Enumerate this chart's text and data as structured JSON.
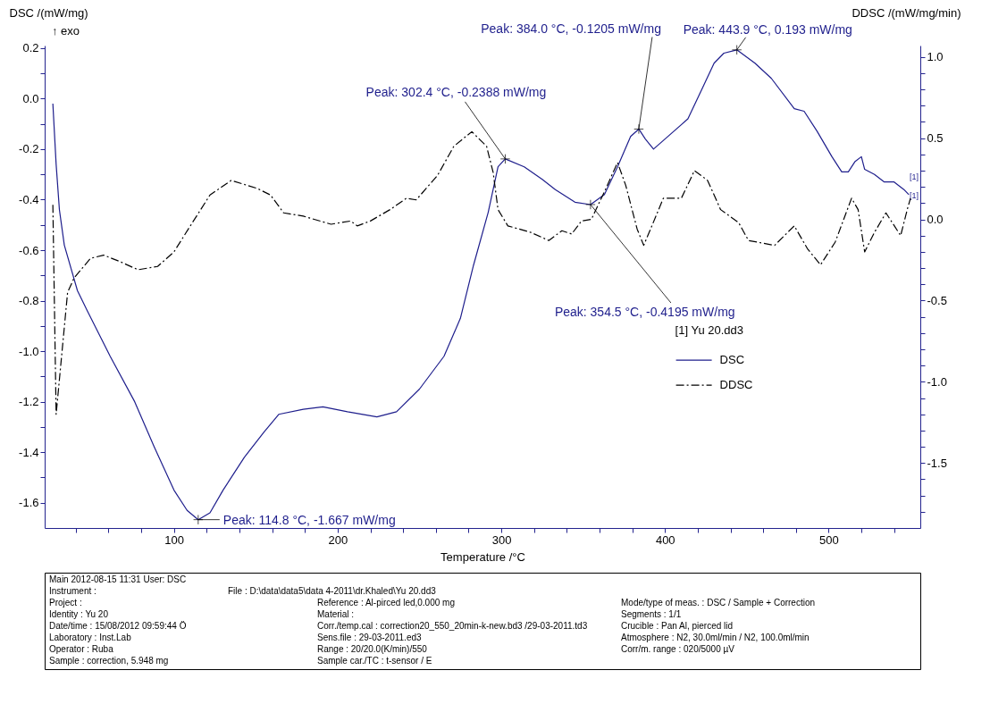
{
  "chart_data": {
    "type": "line",
    "xlabel": "Temperature /°C",
    "ylabel": "DSC /(mW/mg)",
    "y2label": "DDSC /(mW/mg/min)",
    "legend_title": "[1] Yu 20.dd3",
    "legend": "right",
    "xlim": [
      21,
      556
    ],
    "xticks": [
      {
        "value": 40,
        "label": null
      },
      {
        "value": 60,
        "label": null
      },
      {
        "value": 80,
        "label": null
      },
      100,
      {
        "value": 120,
        "label": null
      },
      {
        "value": 140,
        "label": null
      },
      {
        "value": 160,
        "label": null
      },
      {
        "value": 180,
        "label": null
      },
      200,
      {
        "value": 220,
        "label": null
      },
      {
        "value": 240,
        "label": null
      },
      {
        "value": 260,
        "label": null
      },
      {
        "value": 280,
        "label": null
      },
      300,
      {
        "value": 320,
        "label": null
      },
      {
        "value": 340,
        "label": null
      },
      {
        "value": 360,
        "label": null
      },
      {
        "value": 380,
        "label": null
      },
      400,
      {
        "value": 420,
        "label": null
      },
      {
        "value": 440,
        "label": null
      },
      {
        "value": 460,
        "label": null
      },
      {
        "value": 480,
        "label": null
      },
      500,
      {
        "value": 520,
        "label": null
      },
      {
        "value": 540,
        "label": null
      }
    ],
    "ylim": [
      -1.7,
      0.21
    ],
    "yticks": [
      0.2,
      {
        "value": 0.1,
        "label": null
      },
      {
        "value": 0,
        "label": "0.0"
      },
      {
        "value": -0.1,
        "label": null
      },
      -0.2,
      {
        "value": -0.3,
        "label": null
      },
      -0.4,
      {
        "value": -0.5,
        "label": null
      },
      -0.6,
      {
        "value": -0.7,
        "label": null
      },
      -0.8,
      {
        "value": -0.9,
        "label": null
      },
      {
        "value": -1,
        "label": "-1.0"
      },
      {
        "value": -1.1,
        "label": null
      },
      -1.2,
      {
        "value": -1.3,
        "label": null
      },
      -1.4,
      {
        "value": -1.5,
        "label": null
      },
      -1.6
    ],
    "y2lim": [
      -1.9,
      1.07
    ],
    "y2ticks": [
      {
        "value": 1,
        "label": "1.0"
      },
      {
        "value": 0.9,
        "label": null
      },
      {
        "value": 0.8,
        "label": null
      },
      {
        "value": 0.7,
        "label": null
      },
      {
        "value": 0.6,
        "label": null
      },
      0.5,
      {
        "value": 0.4,
        "label": null
      },
      {
        "value": 0.3,
        "label": null
      },
      {
        "value": 0.2,
        "label": null
      },
      {
        "value": 0.1,
        "label": null
      },
      {
        "value": 0,
        "label": "0.0"
      },
      {
        "value": -0.1,
        "label": null
      },
      {
        "value": -0.2,
        "label": null
      },
      {
        "value": -0.3,
        "label": null
      },
      {
        "value": -0.4,
        "label": null
      },
      -0.5,
      {
        "value": -0.6,
        "label": null
      },
      {
        "value": -0.7,
        "label": null
      },
      {
        "value": -0.8,
        "label": null
      },
      {
        "value": -0.9,
        "label": null
      },
      {
        "value": -1,
        "label": "-1.0"
      },
      {
        "value": -1.1,
        "label": null
      },
      {
        "value": -1.2,
        "label": null
      },
      {
        "value": -1.3,
        "label": null
      },
      {
        "value": -1.4,
        "label": null
      },
      -1.5,
      {
        "value": -1.6,
        "label": null
      },
      {
        "value": -1.7,
        "label": null
      },
      {
        "value": -1.8,
        "label": null
      }
    ],
    "series": [
      {
        "name": "DSC",
        "color": "#1e1e8c",
        "line_style": "solid",
        "x": [
          26,
          28,
          30,
          33,
          41,
          47,
          61,
          76,
          88,
          100,
          108,
          114.8,
          122,
          130,
          143,
          155,
          164,
          179,
          191,
          206,
          224,
          236,
          250,
          265,
          275,
          283,
          292,
          298,
          302.4,
          314,
          325,
          333,
          345,
          354.5,
          363,
          371,
          379,
          384.0,
          388,
          393,
          400,
          414,
          422,
          430,
          436,
          443.9,
          455,
          465,
          479,
          485,
          493,
          502,
          508,
          512,
          516,
          520,
          522,
          528,
          534,
          540,
          546,
          549
        ],
        "values": [
          -0.02,
          -0.26,
          -0.44,
          -0.58,
          -0.76,
          -0.84,
          -1.02,
          -1.2,
          -1.38,
          -1.55,
          -1.63,
          -1.667,
          -1.64,
          -1.55,
          -1.42,
          -1.32,
          -1.25,
          -1.23,
          -1.22,
          -1.24,
          -1.26,
          -1.24,
          -1.15,
          -1.02,
          -0.87,
          -0.66,
          -0.45,
          -0.27,
          -0.2388,
          -0.27,
          -0.32,
          -0.36,
          -0.41,
          -0.4195,
          -0.38,
          -0.27,
          -0.15,
          -0.1205,
          -0.16,
          -0.2,
          -0.16,
          -0.08,
          0.03,
          0.14,
          0.18,
          0.193,
          0.14,
          0.08,
          -0.04,
          -0.05,
          -0.13,
          -0.23,
          -0.29,
          -0.29,
          -0.25,
          -0.23,
          -0.28,
          -0.3,
          -0.33,
          -0.33,
          -0.36,
          -0.38
        ]
      },
      {
        "name": "DDSC",
        "color": "#000000",
        "line_style": "dashed",
        "axis": "y2",
        "x": [
          26,
          28,
          35,
          39,
          49,
          57,
          67,
          78,
          90,
          100,
          110,
          122,
          135,
          151,
          159,
          167,
          179,
          196,
          208,
          212,
          220,
          232,
          242,
          248,
          261,
          271,
          282,
          291,
          295,
          298,
          304,
          318,
          329,
          337,
          343,
          349,
          355,
          363,
          371,
          376,
          383,
          387,
          392,
          399,
          410,
          418,
          426,
          434,
          445,
          451,
          467,
          479,
          487,
          495,
          504,
          514,
          518,
          522,
          528,
          535,
          544,
          548,
          550
        ],
        "values": [
          0.09,
          -1.2,
          -0.45,
          -0.36,
          -0.24,
          -0.22,
          -0.26,
          -0.31,
          -0.29,
          -0.2,
          -0.04,
          0.15,
          0.24,
          0.19,
          0.15,
          0.04,
          0.02,
          -0.03,
          -0.01,
          -0.04,
          -0.01,
          0.06,
          0.13,
          0.12,
          0.27,
          0.45,
          0.54,
          0.45,
          0.29,
          0.06,
          -0.04,
          -0.08,
          -0.13,
          -0.07,
          -0.09,
          -0.01,
          0.0,
          0.17,
          0.35,
          0.21,
          -0.06,
          -0.16,
          -0.04,
          0.13,
          0.13,
          0.3,
          0.24,
          0.06,
          -0.02,
          -0.13,
          -0.16,
          -0.04,
          -0.18,
          -0.28,
          -0.14,
          0.13,
          0.06,
          -0.2,
          -0.08,
          0.04,
          -0.1,
          0.06,
          0.13
        ]
      }
    ],
    "annotations": [
      {
        "text": "Peak: 114.8 °C, -1.667 mW/mg",
        "x": 114.8,
        "y": -1.667
      },
      {
        "text": "Peak: 302.4 °C, -0.2388 mW/mg",
        "x": 302.4,
        "y": -0.2388
      },
      {
        "text": "Peak: 354.5 °C, -0.4195 mW/mg",
        "x": 354.5,
        "y": -0.4195
      },
      {
        "text": "Peak: 384.0 °C, -0.1205 mW/mg",
        "x": 384.0,
        "y": -0.1205
      },
      {
        "text": "Peak: 443.9 °C, 0.193 mW/mg",
        "x": 443.9,
        "y": 0.193
      },
      "↑ exo",
      "[1]",
      "[1]",
      "Main 2012-08-15 11:31   User: DSC",
      "Instrument :",
      "File : D:\\data\\data5\\data 4-2011\\dr.Khaled\\Yu 20.dd3",
      "Project :",
      "Identity : Yu 20",
      "Date/time : 15/08/2012 09:59:44 Ö",
      "Laboratory : Inst.Lab",
      "Operator : Ruba",
      "Sample : correction, 5.948 mg",
      "Reference : Al-pirced led,0.000 mg",
      "Material :",
      "Corr./temp.cal : correction20_550_20min-k-new.bd3 /29-03-2011.td3",
      "Sens.file : 29-03-2011.ed3",
      "Range : 20/20.0(K/min)/550",
      "Sample car./TC : t-sensor / E",
      "Mode/type of meas. : DSC / Sample + Correction",
      "Segments : 1/1",
      "Crucible : Pan Al, pierced lid",
      "Atmosphere : N2, 30.0ml/min / N2, 100.0ml/min",
      "Corr/m. range : 020/5000 µV"
    ]
  }
}
